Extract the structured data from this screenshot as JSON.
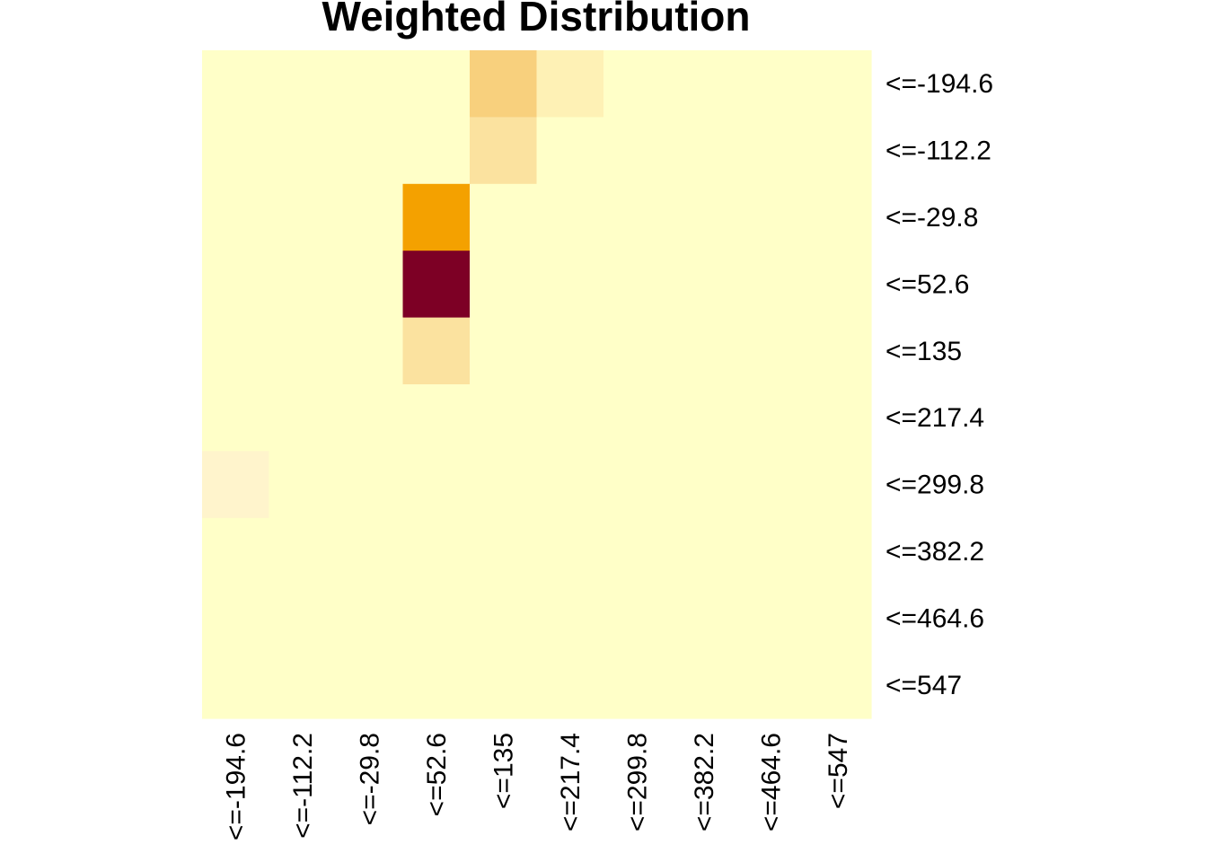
{
  "chart_data": {
    "type": "heatmap",
    "title": "Weighted Distribution",
    "x_categories": [
      "<=-194.6",
      "<=-112.2",
      "<=-29.8",
      "<=52.6",
      "<=135",
      "<=217.4",
      "<=299.8",
      "<=382.2",
      "<=464.6",
      "<=547"
    ],
    "y_categories": [
      "<=-194.6",
      "<=-112.2",
      "<=-29.8",
      "<=52.6",
      "<=135",
      "<=217.4",
      "<=299.8",
      "<=382.2",
      "<=464.6",
      "<=547"
    ],
    "values": [
      [
        0,
        0,
        0,
        0,
        0.25,
        0.05,
        0,
        0,
        0,
        0
      ],
      [
        0,
        0,
        0,
        0,
        0.15,
        0,
        0,
        0,
        0,
        0
      ],
      [
        0,
        0,
        0,
        0.5,
        0,
        0,
        0,
        0,
        0,
        0
      ],
      [
        0,
        0,
        0,
        1.0,
        0,
        0,
        0,
        0,
        0,
        0
      ],
      [
        0,
        0,
        0,
        0.15,
        0,
        0,
        0,
        0,
        0,
        0
      ],
      [
        0,
        0,
        0,
        0,
        0,
        0,
        0,
        0,
        0,
        0
      ],
      [
        0.03,
        0,
        0,
        0,
        0,
        0,
        0,
        0,
        0,
        0
      ],
      [
        0,
        0,
        0,
        0,
        0,
        0,
        0,
        0,
        0,
        0
      ],
      [
        0,
        0,
        0,
        0,
        0,
        0,
        0,
        0,
        0,
        0
      ],
      [
        0,
        0,
        0,
        0,
        0,
        0,
        0,
        0,
        0,
        0
      ]
    ],
    "color_scale": {
      "name": "YlOrRd",
      "stops": [
        {
          "v": 0.0,
          "color": "#FFFFC8"
        },
        {
          "v": 0.03,
          "color": "#FFF4CC"
        },
        {
          "v": 0.05,
          "color": "#FEF1B5"
        },
        {
          "v": 0.15,
          "color": "#FBE29F"
        },
        {
          "v": 0.25,
          "color": "#F8D07D"
        },
        {
          "v": 0.5,
          "color": "#F4A100"
        },
        {
          "v": 1.0,
          "color": "#7D0025"
        }
      ]
    },
    "x_label_orientation": "vertical",
    "y_labels_position": "right",
    "grid": false,
    "legend": "none"
  }
}
